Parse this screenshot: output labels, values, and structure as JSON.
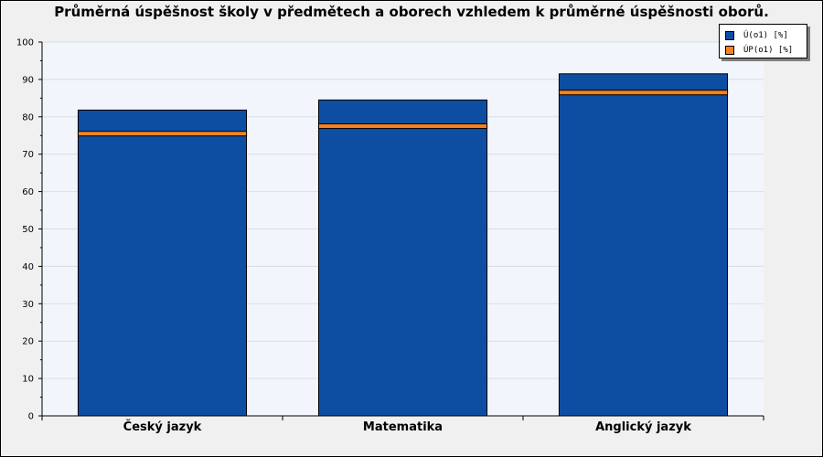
{
  "chart_data": {
    "type": "bar",
    "title": "Průměrná úspěšnost školy v předmětech a oborech vzhledem k průměrné úspěšnosti oborů.",
    "categories": [
      "Český jazyk",
      "Matematika",
      "Anglický jazyk"
    ],
    "series": [
      {
        "name": "Ú(o1) [%]",
        "values": [
          81.8,
          84.5,
          91.5
        ],
        "color": "#0e4ea2",
        "style": "bar"
      },
      {
        "name": "ÚP(o1) [%]",
        "values": [
          75.5,
          77.5,
          86.5
        ],
        "color": "#f58220",
        "style": "marker-line"
      }
    ],
    "ylim": [
      0,
      100
    ],
    "yticks": [
      0,
      10,
      20,
      30,
      40,
      50,
      60,
      70,
      80,
      90,
      100
    ],
    "grid": true,
    "legend": "top-right",
    "plot_background": "#f2f6fc",
    "background": "#f0f0f0"
  }
}
